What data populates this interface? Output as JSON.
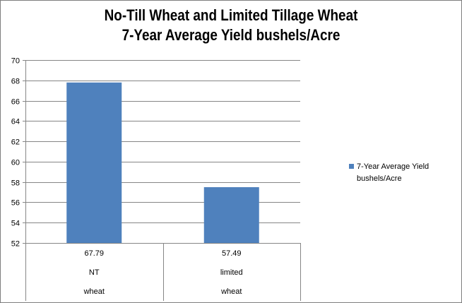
{
  "chart_data": {
    "type": "bar",
    "title_lines": [
      "No-Till Wheat and Limited Tillage Wheat",
      "7-Year Average Yield bushels/Acre"
    ],
    "categories": [
      {
        "value_label": "67.79",
        "line1": "NT",
        "line2": "wheat"
      },
      {
        "value_label": "57.49",
        "line1": "limited",
        "line2": "wheat"
      }
    ],
    "series": [
      {
        "name": "7-Year Average Yield bushels/Acre",
        "values": [
          67.79,
          57.49
        ],
        "color": "#4f81bd"
      }
    ],
    "ylim": [
      52,
      70
    ],
    "ytick_step": 2,
    "grid": true,
    "legend_placement": "right",
    "data_table": true
  }
}
